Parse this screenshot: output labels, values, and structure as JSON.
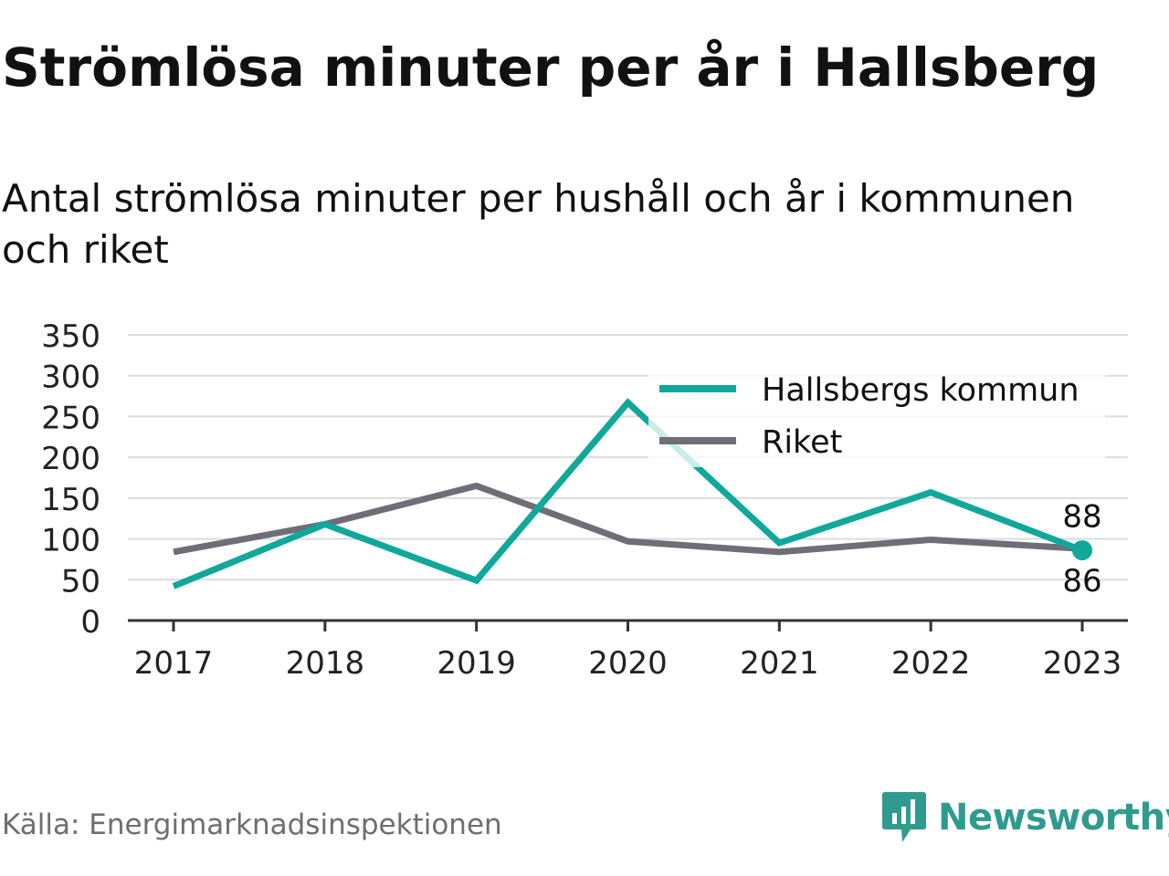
{
  "title": "Strömlösa minuter per år i Hallsberg",
  "subtitle": "Antal strömlösa minuter per hushåll och år i kommunen och riket",
  "source": "Källa: Energimarknadsinspektionen",
  "brand": {
    "name": "Newsworthy",
    "icon": "newsworthy-logo-icon",
    "color": "#2f9b8f"
  },
  "chart_data": {
    "type": "line",
    "x": [
      "2017",
      "2018",
      "2019",
      "2020",
      "2021",
      "2022",
      "2023"
    ],
    "ylim": [
      0,
      350
    ],
    "yticks": [
      "0",
      "50",
      "100",
      "150",
      "200",
      "250",
      "300",
      "350"
    ],
    "grid": true,
    "legend": "top-right",
    "series": [
      {
        "name": "Hallsbergs kommun",
        "color": "#0fa89a",
        "values": [
          42,
          118,
          49,
          267,
          95,
          157,
          86
        ],
        "end_label": "86"
      },
      {
        "name": "Riket",
        "color": "#6f6e76",
        "values": [
          84,
          118,
          165,
          97,
          84,
          99,
          88
        ],
        "end_label": "88"
      }
    ]
  }
}
